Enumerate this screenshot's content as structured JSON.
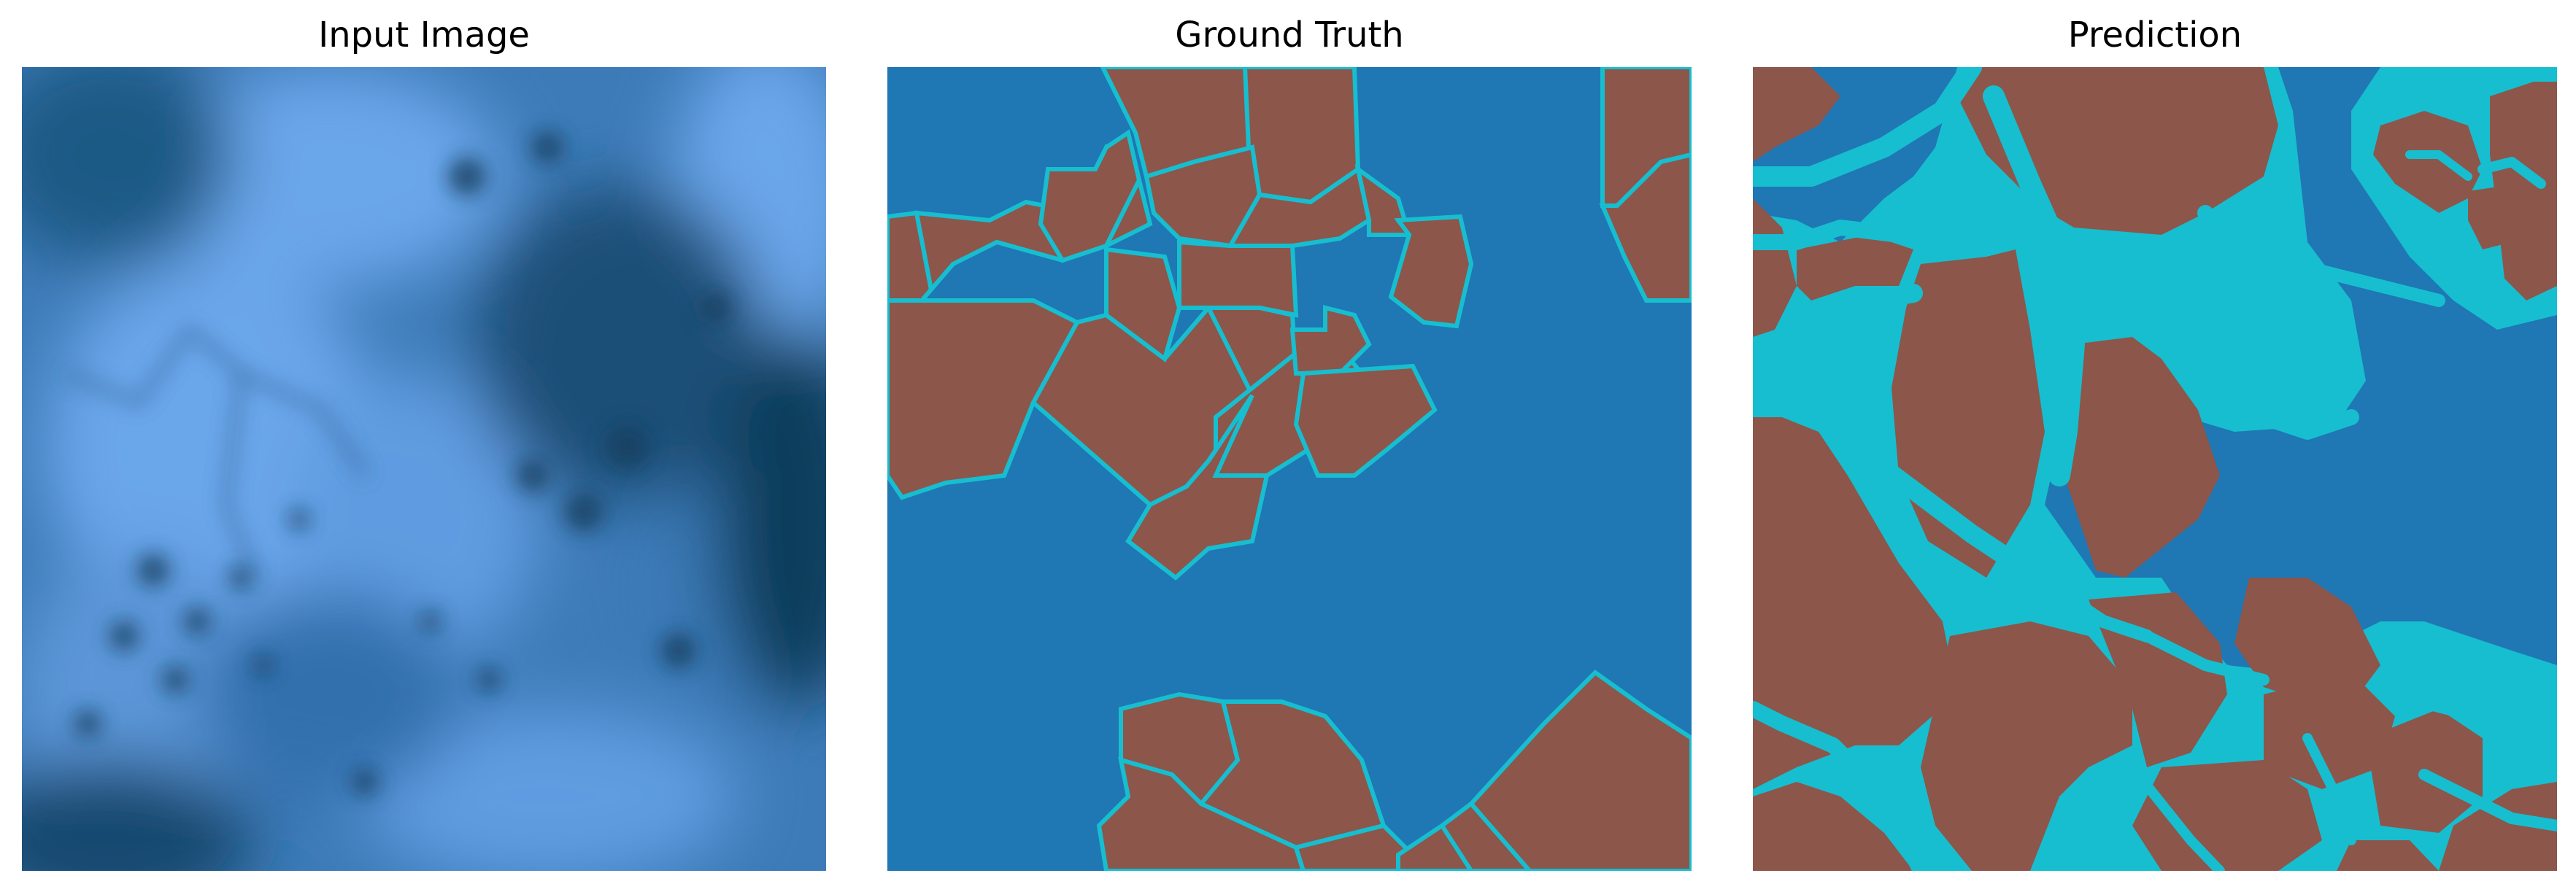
{
  "panels": [
    {
      "title": "Input Image"
    },
    {
      "title": "Ground Truth"
    },
    {
      "title": "Prediction"
    }
  ],
  "colors": {
    "input_light": "#6aa6ea",
    "input_dark": "#0c3a55",
    "background_class": "#1f77b4",
    "object_class": "#8c564b",
    "boundary_class": "#17becf"
  }
}
